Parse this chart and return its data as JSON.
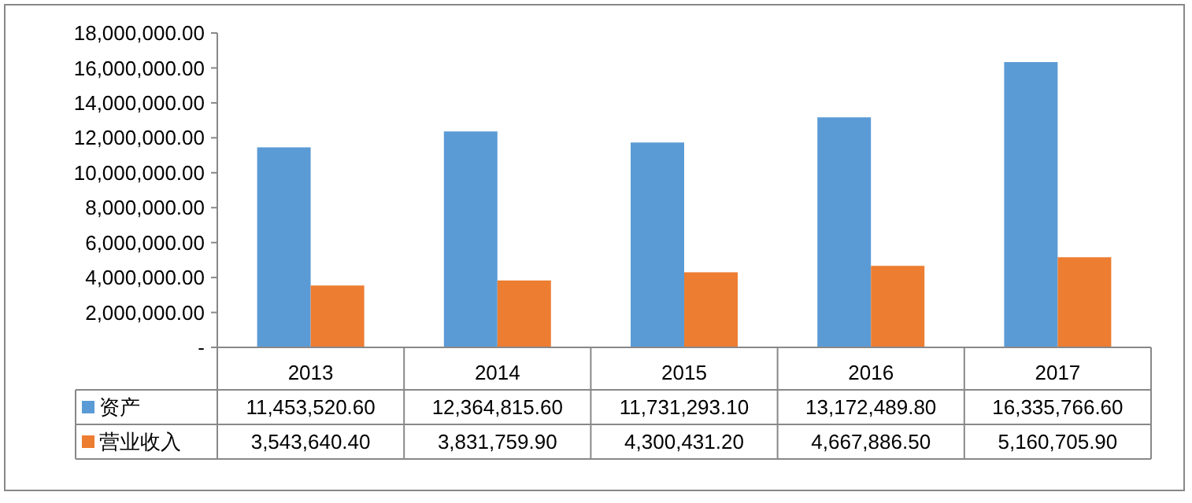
{
  "chart_data": {
    "type": "bar",
    "categories": [
      "2013",
      "2014",
      "2015",
      "2016",
      "2017"
    ],
    "series": [
      {
        "name": "资产",
        "color": "#5b9bd5",
        "values": [
          11453520.6,
          12364815.6,
          11731293.1,
          13172489.8,
          16335766.6
        ],
        "value_labels": [
          "11,453,520.60",
          "12,364,815.60",
          "11,731,293.10",
          "13,172,489.80",
          "16,335,766.60"
        ]
      },
      {
        "name": "营业收入",
        "color": "#ed7d31",
        "values": [
          3543640.4,
          3831759.9,
          4300431.2,
          4667886.5,
          5160705.9
        ],
        "value_labels": [
          "3,543,640.40",
          "3,831,759.90",
          "4,300,431.20",
          "4,667,886.50",
          "5,160,705.90"
        ]
      }
    ],
    "ylim": [
      0,
      18000000
    ],
    "yticks": [
      {
        "value": 0,
        "label": "-"
      },
      {
        "value": 2000000,
        "label": "2,000,000.00"
      },
      {
        "value": 4000000,
        "label": "4,000,000.00"
      },
      {
        "value": 6000000,
        "label": "6,000,000.00"
      },
      {
        "value": 8000000,
        "label": "8,000,000.00"
      },
      {
        "value": 10000000,
        "label": "10,000,000.00"
      },
      {
        "value": 12000000,
        "label": "12,000,000.00"
      },
      {
        "value": 14000000,
        "label": "14,000,000.00"
      },
      {
        "value": 16000000,
        "label": "16,000,000.00"
      },
      {
        "value": 18000000,
        "label": "18,000,000.00"
      }
    ],
    "grid": false,
    "legend": "bottom"
  }
}
